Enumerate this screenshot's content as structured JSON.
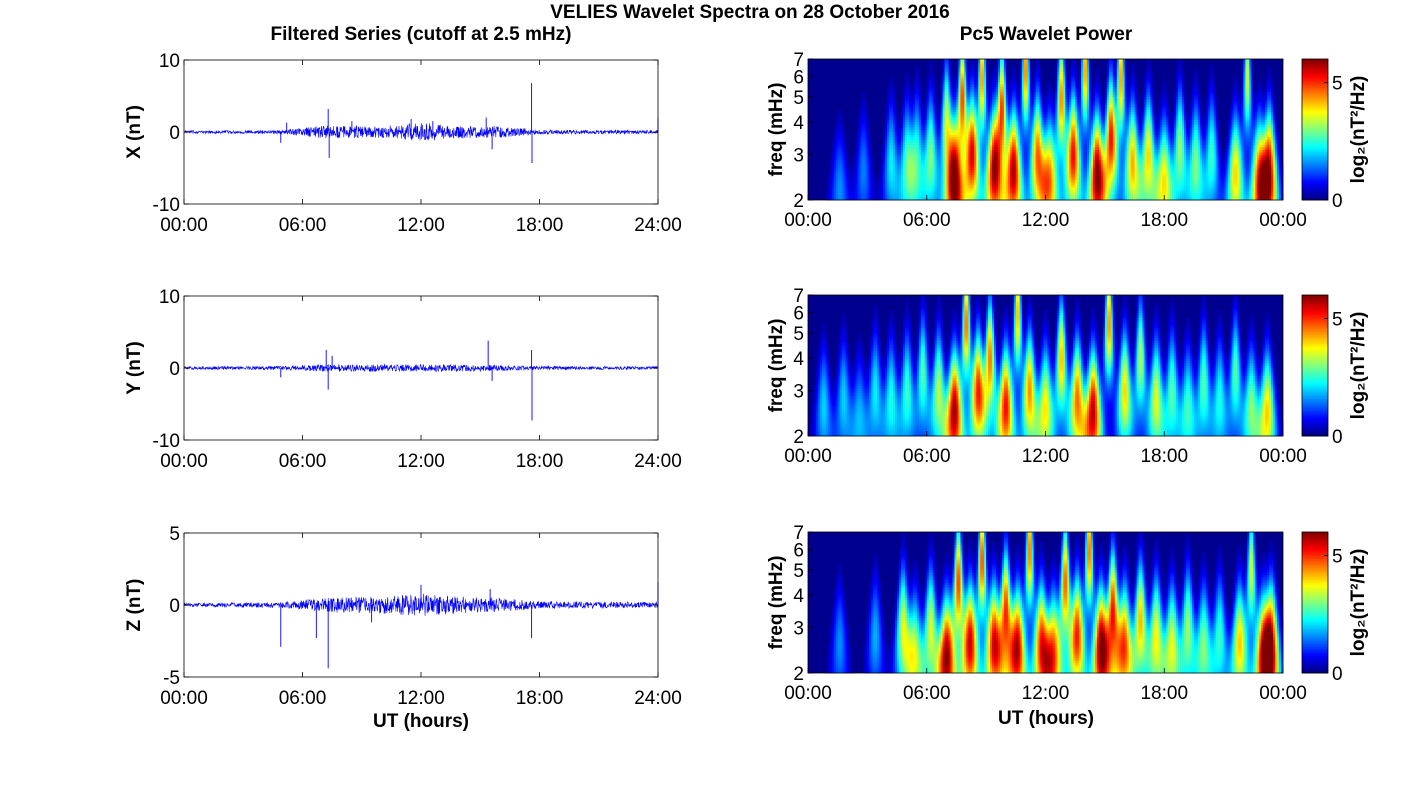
{
  "figure": {
    "title": "VELIES Wavelet Spectra on 28 October 2016",
    "left_title": "Filtered Series (cutoff at 2.5 mHz)",
    "right_title": "Pc5 Wavelet Power",
    "xlabel": "UT (hours)"
  },
  "colors": {
    "trace": "#0000ff",
    "axis": "#000000",
    "background": "#ffffff",
    "colormap": "jet"
  },
  "chart_data": [
    {
      "type": "line",
      "panel": "X",
      "ylabel": "X (nT)",
      "ylim": [
        -10,
        10
      ],
      "yticks": [
        -10,
        0,
        10
      ],
      "xlim": [
        0,
        24
      ],
      "xticks": [
        "00:00",
        "06:00",
        "12:00",
        "18:00",
        "24:00"
      ],
      "noise_amplitude": [
        [
          0,
          0.2
        ],
        [
          5,
          0.25
        ],
        [
          7,
          0.9
        ],
        [
          10,
          0.8
        ],
        [
          12,
          1.3
        ],
        [
          14,
          0.9
        ],
        [
          16,
          0.8
        ],
        [
          18,
          0.3
        ],
        [
          24,
          0.25
        ]
      ],
      "spikes": [
        [
          4.9,
          -1.5
        ],
        [
          5.2,
          1.3
        ],
        [
          7.3,
          3.2
        ],
        [
          7.35,
          -3.6
        ],
        [
          8.5,
          1.5
        ],
        [
          11.5,
          1.8
        ],
        [
          12.6,
          1.5
        ],
        [
          15.3,
          2.0
        ],
        [
          15.6,
          -2.4
        ],
        [
          17.6,
          6.8
        ],
        [
          17.62,
          -4.3
        ],
        [
          24,
          2.0
        ]
      ]
    },
    {
      "type": "line",
      "panel": "Y",
      "ylabel": "Y (nT)",
      "ylim": [
        -10,
        10
      ],
      "yticks": [
        -10,
        0,
        10
      ],
      "xlim": [
        0,
        24
      ],
      "xticks": [
        "00:00",
        "06:00",
        "12:00",
        "18:00",
        "24:00"
      ],
      "noise_amplitude": [
        [
          0,
          0.2
        ],
        [
          5,
          0.25
        ],
        [
          7,
          0.5
        ],
        [
          10,
          0.5
        ],
        [
          12,
          0.5
        ],
        [
          14,
          0.5
        ],
        [
          16,
          0.4
        ],
        [
          18,
          0.25
        ],
        [
          24,
          0.2
        ]
      ],
      "spikes": [
        [
          4.9,
          -1.3
        ],
        [
          7.2,
          2.5
        ],
        [
          7.3,
          -3.0
        ],
        [
          7.5,
          1.7
        ],
        [
          15.4,
          3.8
        ],
        [
          15.6,
          -1.8
        ],
        [
          17.6,
          2.5
        ],
        [
          17.62,
          -7.3
        ]
      ]
    },
    {
      "type": "line",
      "panel": "Z",
      "ylabel": "Z (nT)",
      "ylim": [
        -5,
        5
      ],
      "yticks": [
        -5,
        0,
        5
      ],
      "xlim": [
        0,
        24
      ],
      "xticks": [
        "00:00",
        "06:00",
        "12:00",
        "18:00",
        "24:00"
      ],
      "noise_amplitude": [
        [
          0,
          0.12
        ],
        [
          5,
          0.2
        ],
        [
          7,
          0.5
        ],
        [
          10,
          0.6
        ],
        [
          12,
          0.8
        ],
        [
          14,
          0.6
        ],
        [
          16,
          0.5
        ],
        [
          18,
          0.25
        ],
        [
          24,
          0.2
        ]
      ],
      "spikes": [
        [
          4.9,
          -2.9
        ],
        [
          6.7,
          -2.3
        ],
        [
          7.3,
          -4.4
        ],
        [
          9.5,
          -1.2
        ],
        [
          12.0,
          1.4
        ],
        [
          15.5,
          1.1
        ],
        [
          17.6,
          -2.3
        ],
        [
          24,
          1.6
        ]
      ]
    },
    {
      "type": "heatmap",
      "panel": "X",
      "ylabel": "freq (mHz)",
      "ylim": [
        2,
        7
      ],
      "yscale": "log",
      "yticks": [
        2,
        3,
        4,
        5,
        6,
        7
      ],
      "xlim": [
        0,
        24
      ],
      "xticks": [
        "00:00",
        "06:00",
        "12:00",
        "18:00",
        "00:00"
      ],
      "colorbar_label": "log₂(nT²/Hz)",
      "clim": [
        0,
        6
      ],
      "cticks": [
        0,
        5
      ],
      "bursts": [
        [
          1.6,
          2.2,
          1.6
        ],
        [
          2.8,
          2.6,
          1.5
        ],
        [
          4.2,
          2.8,
          2.2
        ],
        [
          5.0,
          2.8,
          2.6
        ],
        [
          5.5,
          3.0,
          2.4
        ],
        [
          6.2,
          3.0,
          3.0
        ],
        [
          7.0,
          4.0,
          3.6
        ],
        [
          7.4,
          2.3,
          5.8
        ],
        [
          7.8,
          5.0,
          5.0
        ],
        [
          8.3,
          3.0,
          5.2
        ],
        [
          8.8,
          6.0,
          4.6
        ],
        [
          9.4,
          2.6,
          5.4
        ],
        [
          9.8,
          4.5,
          5.0
        ],
        [
          10.4,
          2.6,
          5.6
        ],
        [
          11.0,
          6.5,
          4.8
        ],
        [
          11.6,
          3.0,
          4.6
        ],
        [
          12.2,
          2.4,
          4.2
        ],
        [
          12.8,
          5.0,
          4.6
        ],
        [
          13.4,
          3.0,
          5.2
        ],
        [
          14.0,
          6.5,
          4.6
        ],
        [
          14.6,
          2.5,
          6.0
        ],
        [
          15.3,
          3.5,
          5.2
        ],
        [
          15.8,
          6.0,
          4.6
        ],
        [
          16.4,
          2.8,
          4.2
        ],
        [
          17.2,
          3.0,
          4.0
        ],
        [
          18.0,
          2.4,
          3.8
        ],
        [
          18.8,
          3.2,
          3.2
        ],
        [
          19.6,
          2.8,
          3.0
        ],
        [
          20.4,
          3.0,
          2.6
        ],
        [
          21.6,
          2.5,
          4.0
        ],
        [
          22.2,
          6.0,
          3.6
        ],
        [
          22.8,
          2.4,
          4.6
        ],
        [
          23.3,
          2.6,
          5.4
        ]
      ]
    },
    {
      "type": "heatmap",
      "panel": "Y",
      "ylabel": "freq (mHz)",
      "ylim": [
        2,
        7
      ],
      "yscale": "log",
      "yticks": [
        2,
        3,
        4,
        5,
        6,
        7
      ],
      "xlim": [
        0,
        24
      ],
      "xticks": [
        "00:00",
        "06:00",
        "12:00",
        "18:00",
        "00:00"
      ],
      "colorbar_label": "log₂(nT²/Hz)",
      "clim": [
        0,
        6
      ],
      "cticks": [
        0,
        5
      ],
      "bursts": [
        [
          0.8,
          2.6,
          2.0
        ],
        [
          1.8,
          2.8,
          2.0
        ],
        [
          2.6,
          2.4,
          1.8
        ],
        [
          3.4,
          3.0,
          2.2
        ],
        [
          4.2,
          2.8,
          2.4
        ],
        [
          5.0,
          3.0,
          2.6
        ],
        [
          5.8,
          3.5,
          2.8
        ],
        [
          6.6,
          3.0,
          3.4
        ],
        [
          7.4,
          2.5,
          5.8
        ],
        [
          8.0,
          5.5,
          4.8
        ],
        [
          8.6,
          3.0,
          5.0
        ],
        [
          9.2,
          4.0,
          4.6
        ],
        [
          10.0,
          2.6,
          5.2
        ],
        [
          10.6,
          6.0,
          4.4
        ],
        [
          11.2,
          3.0,
          4.4
        ],
        [
          12.0,
          2.6,
          3.8
        ],
        [
          12.8,
          4.0,
          4.2
        ],
        [
          13.6,
          2.8,
          4.6
        ],
        [
          14.4,
          2.5,
          5.6
        ],
        [
          15.2,
          5.5,
          4.6
        ],
        [
          16.0,
          3.0,
          4.0
        ],
        [
          16.8,
          4.0,
          3.4
        ],
        [
          17.6,
          2.8,
          3.6
        ],
        [
          18.4,
          3.0,
          2.8
        ],
        [
          19.2,
          2.6,
          2.6
        ],
        [
          20.0,
          3.2,
          2.8
        ],
        [
          20.8,
          2.8,
          2.4
        ],
        [
          21.6,
          3.5,
          2.8
        ],
        [
          22.4,
          2.6,
          3.0
        ],
        [
          23.2,
          2.5,
          4.0
        ]
      ]
    },
    {
      "type": "heatmap",
      "panel": "Z",
      "ylabel": "freq (mHz)",
      "ylim": [
        2,
        7
      ],
      "yscale": "log",
      "yticks": [
        2,
        3,
        4,
        5,
        6,
        7
      ],
      "xlim": [
        0,
        24
      ],
      "xticks": [
        "00:00",
        "06:00",
        "12:00",
        "18:00",
        "00:00"
      ],
      "colorbar_label": "log₂(nT²/Hz)",
      "clim": [
        0,
        6
      ],
      "cticks": [
        0,
        5
      ],
      "bursts": [
        [
          1.6,
          2.6,
          1.6
        ],
        [
          3.4,
          2.8,
          1.8
        ],
        [
          4.8,
          3.0,
          3.6
        ],
        [
          5.4,
          2.4,
          3.2
        ],
        [
          6.2,
          3.0,
          3.6
        ],
        [
          7.0,
          2.3,
          5.8
        ],
        [
          7.6,
          4.5,
          5.0
        ],
        [
          8.2,
          2.6,
          5.4
        ],
        [
          8.8,
          5.5,
          5.0
        ],
        [
          9.4,
          2.6,
          5.2
        ],
        [
          10.0,
          3.5,
          5.0
        ],
        [
          10.6,
          2.5,
          5.4
        ],
        [
          11.2,
          6.0,
          4.8
        ],
        [
          11.8,
          2.6,
          5.0
        ],
        [
          12.4,
          2.4,
          4.4
        ],
        [
          13.0,
          4.5,
          4.8
        ],
        [
          13.6,
          2.8,
          5.0
        ],
        [
          14.2,
          6.0,
          4.8
        ],
        [
          14.8,
          2.5,
          6.0
        ],
        [
          15.4,
          3.5,
          5.2
        ],
        [
          16.0,
          2.6,
          4.6
        ],
        [
          16.8,
          3.2,
          4.2
        ],
        [
          17.6,
          2.8,
          3.8
        ],
        [
          18.4,
          2.6,
          3.6
        ],
        [
          19.2,
          3.0,
          3.2
        ],
        [
          20.0,
          2.6,
          3.0
        ],
        [
          20.8,
          2.8,
          2.6
        ],
        [
          21.8,
          2.6,
          4.0
        ],
        [
          22.4,
          5.0,
          3.6
        ],
        [
          23.0,
          2.4,
          4.6
        ],
        [
          23.4,
          2.6,
          5.2
        ]
      ]
    }
  ]
}
